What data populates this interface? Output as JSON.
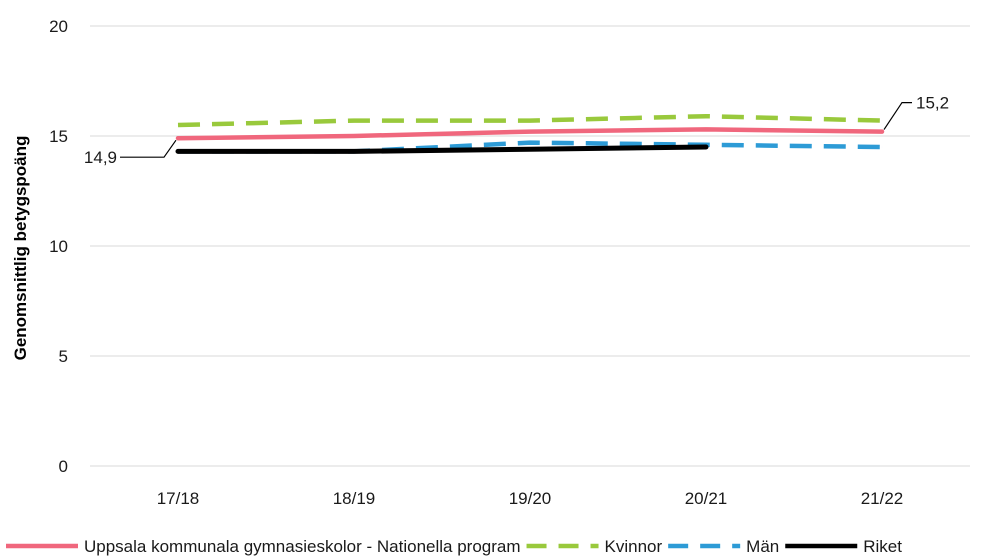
{
  "chart_data": {
    "type": "line",
    "title": "",
    "xlabel": "",
    "ylabel": "Genomsnittlig betygspoäng",
    "ylim": [
      0,
      20
    ],
    "yticks": [
      0,
      5,
      10,
      15,
      20
    ],
    "grid": "horizontal",
    "legend_position": "bottom",
    "categories": [
      "17/18",
      "18/19",
      "19/20",
      "20/21",
      "21/22"
    ],
    "series": [
      {
        "name": "Uppsala kommunala gymnasieskolor - Nationella program",
        "values": [
          14.9,
          15.0,
          15.2,
          15.3,
          15.2
        ],
        "color": "#f0677d",
        "dash": "solid"
      },
      {
        "name": "Kvinnor",
        "values": [
          15.5,
          15.7,
          15.7,
          15.9,
          15.7
        ],
        "color": "#99c93c",
        "dash": "dashed"
      },
      {
        "name": "Män",
        "values": [
          14.3,
          14.3,
          14.7,
          14.6,
          14.5
        ],
        "color": "#2d9bd6",
        "dash": "dashed"
      },
      {
        "name": "Riket",
        "values": [
          14.3,
          14.3,
          14.4,
          14.5,
          null
        ],
        "color": "#000000",
        "dash": "solid"
      }
    ],
    "annotations": [
      {
        "text": "14,9",
        "series": 0,
        "index": 0
      },
      {
        "text": "15,2",
        "series": 0,
        "index": 4
      }
    ]
  }
}
